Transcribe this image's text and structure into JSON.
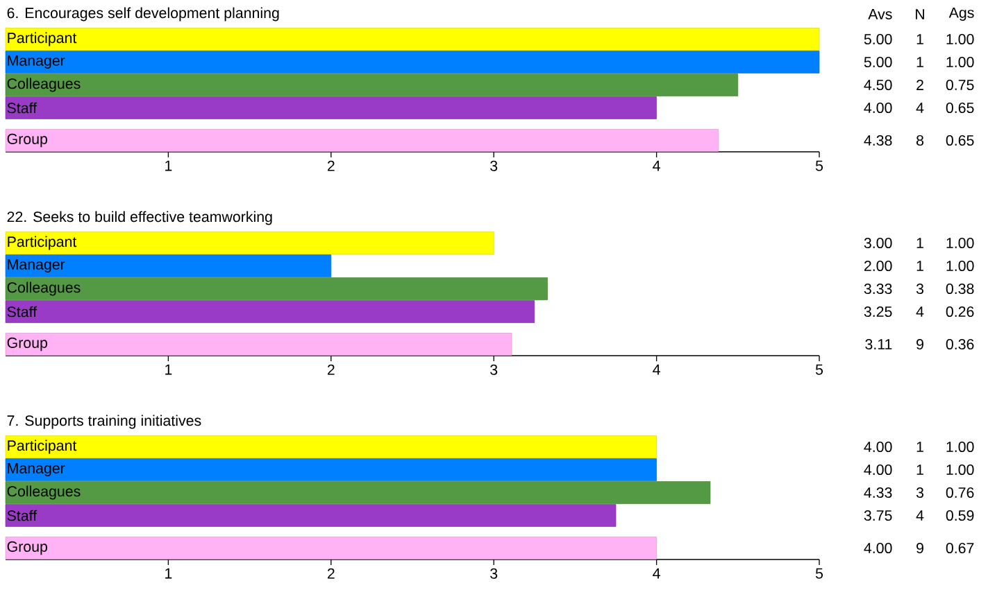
{
  "chart_data": [
    {
      "type": "bar",
      "orientation": "horizontal",
      "title": "6.  Encourages self development planning",
      "categories": [
        "Participant",
        "Manager",
        "Colleagues",
        "Staff",
        "Group"
      ],
      "values": [
        5,
        5,
        4.5,
        4,
        4.38
      ],
      "value_labels": [
        "5.00",
        "5.00",
        "4.50",
        "4.00",
        "4.38"
      ],
      "colors": [
        "#ffff00",
        "#0080ff",
        "#549a44",
        "#9a3bc8",
        "#ffb3f5"
      ],
      "xlim": [
        0,
        5
      ],
      "xticks": [
        1,
        2,
        3,
        4,
        5
      ],
      "annotations": [
        "Avs",
        "N",
        "Ags",
        "1",
        "1.00",
        "1",
        "1.00",
        "2",
        "0.75",
        "4",
        "0.65",
        "8",
        "0.65"
      ]
    },
    {
      "type": "bar",
      "orientation": "horizontal",
      "title": "22.  Seeks to build effective teamworking",
      "categories": [
        "Participant",
        "Manager",
        "Colleagues",
        "Staff",
        "Group"
      ],
      "values": [
        3,
        2,
        3.33,
        3.25,
        3.11
      ],
      "value_labels": [
        "3.00",
        "2.00",
        "3.33",
        "3.25",
        "3.11"
      ],
      "colors": [
        "#ffff00",
        "#0080ff",
        "#549a44",
        "#9a3bc8",
        "#ffb3f5"
      ],
      "xlim": [
        0,
        5
      ],
      "xticks": [
        1,
        2,
        3,
        4,
        5
      ],
      "annotations": [
        "1",
        "1.00",
        "1",
        "1.00",
        "3",
        "0.38",
        "4",
        "0.26",
        "9",
        "0.36"
      ]
    },
    {
      "type": "bar",
      "orientation": "horizontal",
      "title": "7.  Supports training initiatives",
      "categories": [
        "Participant",
        "Manager",
        "Colleagues",
        "Staff",
        "Group"
      ],
      "values": [
        4,
        4,
        4.33,
        3.75,
        4
      ],
      "value_labels": [
        "4.00",
        "4.00",
        "4.33",
        "3.75",
        "4.00"
      ],
      "colors": [
        "#ffff00",
        "#0080ff",
        "#549a44",
        "#9a3bc8",
        "#ffb3f5"
      ],
      "xlim": [
        0,
        5
      ],
      "xticks": [
        1,
        2,
        3,
        4,
        5
      ],
      "annotations": [
        "1",
        "1.00",
        "1",
        "1.00",
        "3",
        "0.76",
        "4",
        "0.59",
        "9",
        "0.67"
      ]
    }
  ]
}
